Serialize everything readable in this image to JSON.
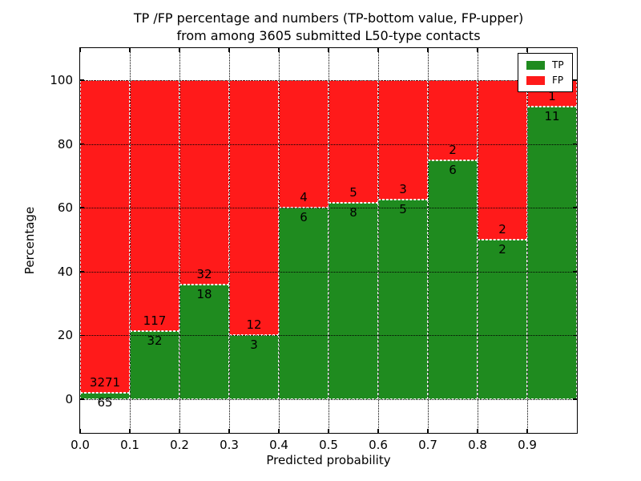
{
  "figure": {
    "title_line1": "TP /FP percentage and numbers (TP-bottom value, FP-upper)",
    "title_line2": "from among 3605 submitted L50-type contacts"
  },
  "axes": {
    "xlabel": "Predicted probability",
    "ylabel": "Percentage"
  },
  "legend": {
    "position": "upper right",
    "items": [
      {
        "label": "TP",
        "color": "#1f8b1f"
      },
      {
        "label": "FP",
        "color": "#ff1a1a"
      }
    ]
  },
  "colors": {
    "tp_green": "#1f8b1f",
    "fp_red": "#ff1a1a",
    "bar_edge": "#ffffff",
    "grid": "#000000",
    "background": "#ffffff",
    "text": "#000000"
  },
  "chart_data": {
    "type": "bar",
    "stacked": true,
    "normalization": "each bin stacked to 100 percent; labels show raw counts",
    "title": "TP /FP percentage and numbers (TP-bottom value, FP-upper) from among 3605 submitted L50-type contacts",
    "xlabel": "Predicted probability",
    "ylabel": "Percentage",
    "total_contacts": 3605,
    "bin_edges": [
      0.0,
      0.1,
      0.2,
      0.3,
      0.4,
      0.5,
      0.6,
      0.7,
      0.8,
      0.9,
      1.0
    ],
    "series": [
      {
        "name": "TP",
        "color": "#1f8b1f",
        "counts": [
          65,
          32,
          18,
          3,
          6,
          8,
          5,
          6,
          2,
          11
        ]
      },
      {
        "name": "FP",
        "color": "#ff1a1a",
        "counts": [
          3271,
          117,
          32,
          12,
          4,
          5,
          3,
          2,
          2,
          1
        ]
      }
    ],
    "tp_percent_per_bin": [
      1.95,
      21.48,
      36.0,
      20.0,
      60.0,
      61.54,
      62.5,
      75.0,
      50.0,
      91.67
    ],
    "xticks": [
      "0.0",
      "0.1",
      "0.2",
      "0.3",
      "0.4",
      "0.5",
      "0.6",
      "0.7",
      "0.8",
      "0.9"
    ],
    "yticks": [
      0,
      20,
      40,
      60,
      80,
      100
    ],
    "xlim": [
      0.0,
      1.0
    ],
    "ylim": [
      -10.5,
      110
    ],
    "grid": "dotted black, both axes, drawn above bars",
    "bar_edge_style": "white dashed",
    "legend_position": "upper right"
  }
}
